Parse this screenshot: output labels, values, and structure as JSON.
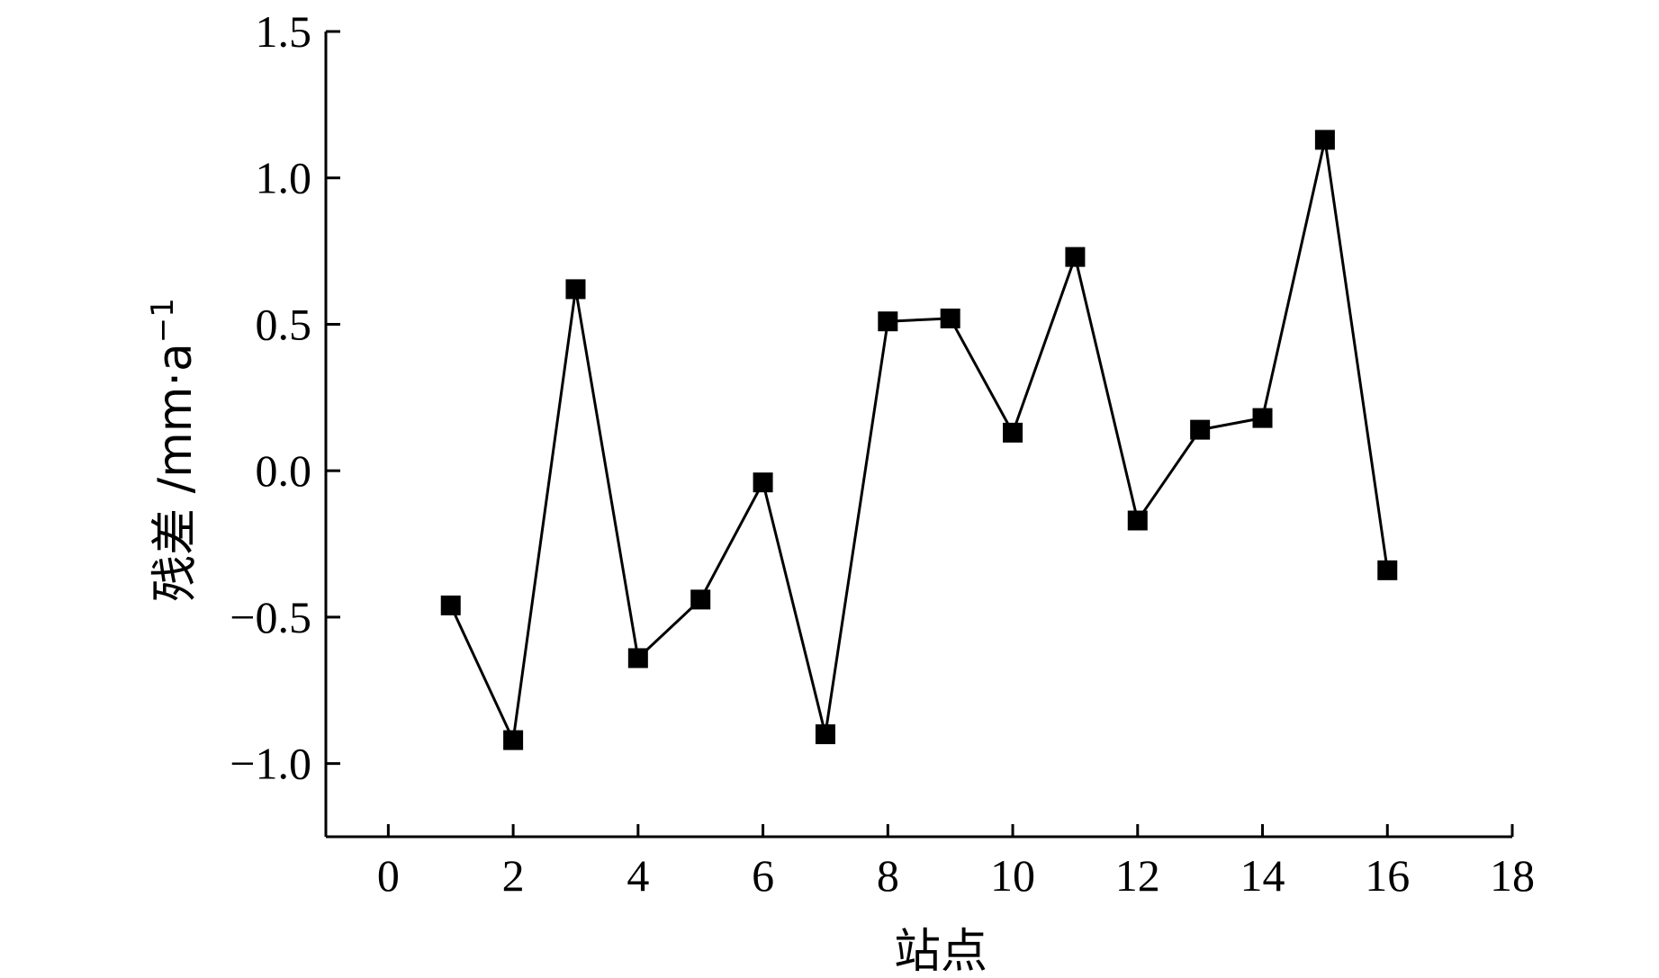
{
  "chart_data": {
    "type": "line",
    "xlabel": "站点",
    "ylabel": "残差 /mm·a",
    "ylabel_sup": "−1",
    "xlim": [
      -1,
      18
    ],
    "ylim": [
      -1.25,
      1.5
    ],
    "x_ticks": [
      0,
      2,
      4,
      6,
      8,
      10,
      12,
      14,
      16,
      18
    ],
    "x_tick_labels": [
      "0",
      "2",
      "4",
      "6",
      "8",
      "10",
      "12",
      "14",
      "16",
      "18"
    ],
    "y_ticks": [
      -1.0,
      -0.5,
      0.0,
      0.5,
      1.0,
      1.5
    ],
    "y_tick_labels": [
      "−1.0",
      "−0.5",
      "0.0",
      "0.5",
      "1.0",
      "1.5"
    ],
    "grid": false,
    "legend": "none",
    "series": [
      {
        "marker": "square",
        "color": "#000000",
        "x": [
          1,
          2,
          3,
          4,
          5,
          6,
          7,
          8,
          9,
          10,
          11,
          12,
          13,
          14,
          15,
          16
        ],
        "y": [
          -0.46,
          -0.92,
          0.62,
          -0.64,
          -0.44,
          -0.04,
          -0.9,
          0.51,
          0.52,
          0.13,
          0.73,
          -0.17,
          0.14,
          0.18,
          1.13,
          -0.34
        ]
      }
    ]
  }
}
